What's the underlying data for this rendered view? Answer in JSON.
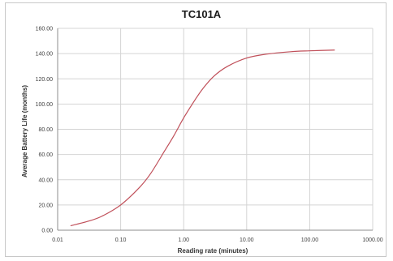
{
  "chart_data": {
    "type": "line",
    "title": "TC101A",
    "xlabel": "Reading rate (minutes)",
    "ylabel": "Average Battery Life (months)",
    "x_scale": "log",
    "xlim": [
      0.01,
      1000
    ],
    "ylim": [
      0,
      160
    ],
    "x_ticks": [
      0.01,
      0.1,
      1,
      10,
      100,
      1000
    ],
    "x_tick_labels": [
      "0.01",
      "0.10",
      "1.00",
      "10.00",
      "100.00",
      "1000.00"
    ],
    "y_ticks": [
      0,
      20,
      40,
      60,
      80,
      100,
      120,
      140,
      160
    ],
    "y_tick_labels": [
      "0.00",
      "20.00",
      "40.00",
      "60.00",
      "80.00",
      "100.00",
      "120.00",
      "140.00",
      "160.00"
    ],
    "grid": true,
    "legend": "none",
    "series_color": "#c0505a",
    "series": [
      {
        "x": [
          0.016,
          0.03,
          0.05,
          0.1,
          0.2,
          0.3,
          0.5,
          0.7,
          1.0,
          1.5,
          2.0,
          3.0,
          5.0,
          10.0,
          20.0,
          50.0,
          100.0,
          250.0
        ],
        "y": [
          3.5,
          7.0,
          11.0,
          20.0,
          34.0,
          45.0,
          63.0,
          75.0,
          89.0,
          103.0,
          112.0,
          122.0,
          130.0,
          136.5,
          139.5,
          141.5,
          142.2,
          142.8
        ]
      }
    ]
  }
}
